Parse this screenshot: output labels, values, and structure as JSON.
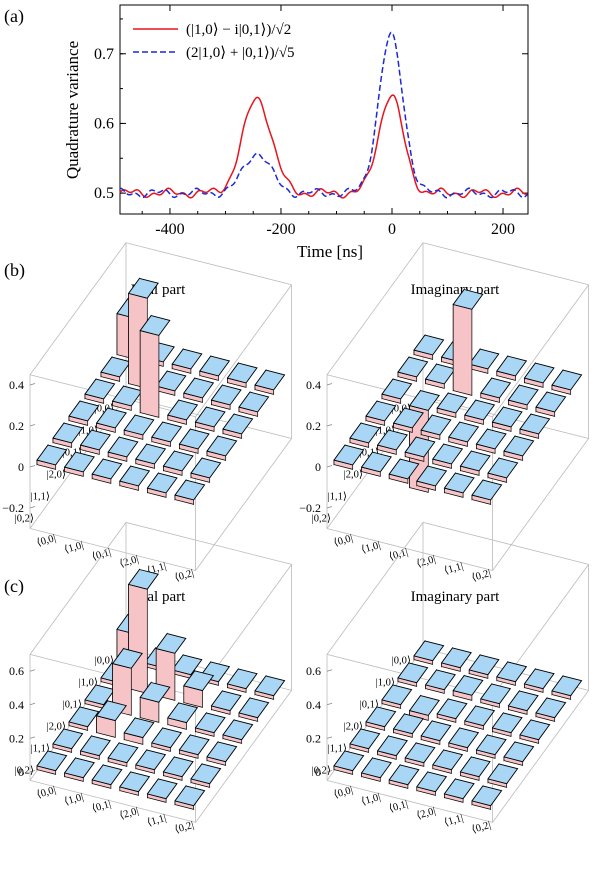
{
  "panel_labels": [
    "(a)",
    "(b)",
    "(c)"
  ],
  "colors": {
    "real_top": "#a9d6f5",
    "side_front": "#f6c3c6",
    "side_left": "#9a8fd6",
    "series_a": "#e8141c",
    "series_b": "#1c2ad6"
  },
  "basis_labels": [
    "|0,0⟩",
    "|1,0⟩",
    "|0,1⟩",
    "|2,0⟩",
    "|1,1⟩",
    "|0,2⟩"
  ],
  "basis_labels_bra": [
    "⟨0,0|",
    "⟨1,0|",
    "⟨0,1|",
    "⟨2,0|",
    "⟨1,1|",
    "⟨0,2|"
  ],
  "chart_data": [
    {
      "type": "line",
      "panel": "(a)",
      "xlabel": "Time [ns]",
      "ylabel": "Quadrature variance",
      "xlim": [
        -490,
        245
      ],
      "ylim": [
        0.47,
        0.77
      ],
      "xticks": [
        -400,
        -200,
        0,
        200
      ],
      "yticks": [
        0.5,
        0.6,
        0.7
      ],
      "legend_position": "top-left",
      "series": [
        {
          "name": "(|1,0⟩ − i|0,1⟩)/√2",
          "style": "solid",
          "color": "#e8141c",
          "baseline": 0.5,
          "peaks": [
            {
              "t": -243,
              "height": 0.636,
              "width": 26
            },
            {
              "t": -2,
              "height": 0.641,
              "width": 22
            }
          ]
        },
        {
          "name": "(2|1,0⟩ + |0,1⟩)/√5",
          "style": "dashed",
          "color": "#1c2ad6",
          "baseline": 0.5,
          "peaks": [
            {
              "t": -243,
              "height": 0.558,
              "width": 24
            },
            {
              "t": -2,
              "height": 0.725,
              "width": 22
            }
          ]
        }
      ]
    },
    {
      "type": "bar3d",
      "panel": "(b)",
      "title": "Real part",
      "zlim": [
        -0.3,
        0.45
      ],
      "zticks": [
        0.4,
        0.2,
        0,
        -0.2
      ],
      "matrix": [
        [
          0.2,
          0.0,
          0.0,
          0.0,
          0.0,
          0.0
        ],
        [
          0.0,
          0.44,
          0.0,
          0.0,
          0.0,
          0.0
        ],
        [
          0.0,
          0.0,
          0.4,
          0.0,
          0.0,
          0.0
        ],
        [
          0.0,
          0.0,
          0.0,
          0.02,
          0.0,
          0.0
        ],
        [
          0.0,
          0.0,
          0.0,
          0.0,
          0.0,
          0.0
        ],
        [
          0.0,
          0.0,
          0.0,
          0.0,
          0.0,
          0.0
        ]
      ]
    },
    {
      "type": "bar3d",
      "panel": "(b)",
      "title": "Imaginary part",
      "zlim": [
        -0.3,
        0.45
      ],
      "zticks": [
        0.4,
        0.2,
        0,
        -0.2
      ],
      "matrix": [
        [
          0.0,
          0.0,
          0.0,
          0.0,
          0.0,
          0.0
        ],
        [
          0.0,
          0.0,
          0.42,
          0.0,
          0.0,
          0.0
        ],
        [
          0.0,
          -0.4,
          0.0,
          0.0,
          0.0,
          0.0
        ],
        [
          0.0,
          0.0,
          0.0,
          0.0,
          0.0,
          0.0
        ],
        [
          0.0,
          0.0,
          0.0,
          0.0,
          0.0,
          0.0
        ],
        [
          0.0,
          0.0,
          0.0,
          0.0,
          0.0,
          0.0
        ]
      ]
    },
    {
      "type": "bar3d",
      "panel": "(c)",
      "title": "Real part",
      "zlim": [
        -0.05,
        0.7
      ],
      "zticks": [
        0.6,
        0.4,
        0.2,
        0
      ],
      "matrix": [
        [
          0.18,
          0.0,
          0.0,
          0.0,
          0.0,
          0.0
        ],
        [
          0.0,
          0.62,
          0.28,
          0.1,
          0.0,
          0.0
        ],
        [
          0.0,
          0.28,
          0.12,
          0.04,
          0.0,
          0.0
        ],
        [
          0.0,
          0.1,
          0.04,
          0.02,
          0.0,
          0.0
        ],
        [
          0.0,
          0.0,
          0.0,
          0.0,
          0.0,
          0.0
        ],
        [
          0.0,
          0.0,
          0.0,
          0.0,
          0.0,
          0.0
        ]
      ]
    },
    {
      "type": "bar3d",
      "panel": "(c)",
      "title": "Imaginary part",
      "zlim": [
        -0.05,
        0.7
      ],
      "zticks": [
        0.6,
        0.4,
        0.2,
        0
      ],
      "matrix": [
        [
          0.0,
          0.0,
          0.0,
          0.0,
          0.0,
          0.0
        ],
        [
          0.0,
          0.0,
          0.03,
          0.0,
          0.0,
          0.0
        ],
        [
          0.0,
          -0.03,
          0.0,
          0.0,
          0.0,
          0.0
        ],
        [
          0.0,
          0.0,
          0.0,
          0.0,
          0.0,
          0.0
        ],
        [
          0.0,
          0.0,
          0.0,
          0.0,
          0.0,
          0.0
        ],
        [
          0.0,
          0.0,
          0.0,
          0.0,
          0.0,
          0.0
        ]
      ]
    }
  ]
}
